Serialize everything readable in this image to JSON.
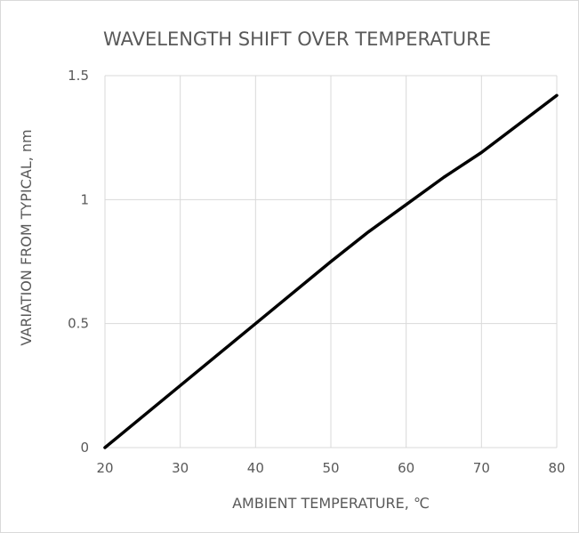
{
  "chart_data": {
    "type": "line",
    "title": "WAVELENGTH SHIFT OVER TEMPERATURE",
    "xlabel": "AMBIENT TEMPERATURE, ℃",
    "ylabel": "VARIATION FROM TYPICAL, nm",
    "xlim": [
      20,
      80
    ],
    "ylim": [
      0,
      1.5
    ],
    "xticks": [
      "20",
      "30",
      "40",
      "50",
      "60",
      "70",
      "80"
    ],
    "yticks": [
      "0",
      "0.5",
      "1",
      "1.5"
    ],
    "grid": true,
    "series": [
      {
        "color": "#000000",
        "x": [
          20,
          30,
          40,
          50,
          55,
          60,
          65,
          70,
          80
        ],
        "y": [
          0,
          0.25,
          0.5,
          0.75,
          0.87,
          0.98,
          1.09,
          1.19,
          1.42
        ]
      }
    ]
  }
}
